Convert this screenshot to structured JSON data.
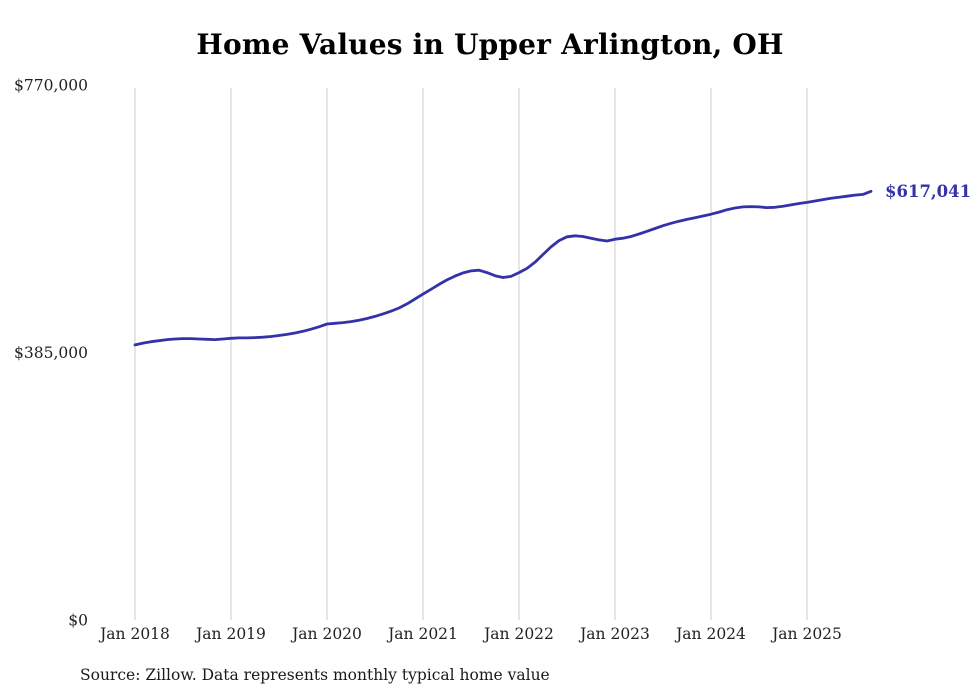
{
  "title": "Home Values in Upper Arlington, OH",
  "source_note": "Source: Zillow. Data represents monthly typical home value",
  "end_label": "$617,041",
  "colors": {
    "line": "#3432a8",
    "end_label": "#3432a8",
    "grid": "#cbcbcb",
    "axis_text": "#222222",
    "title_text": "#000000"
  },
  "chart_data": {
    "type": "line",
    "title": "Home Values in Upper Arlington, OH",
    "xlabel": "",
    "ylabel": "",
    "x_start": "2018-01",
    "x_end": "2025-09",
    "x_tick_labels": [
      "Jan 2018",
      "Jan 2019",
      "Jan 2020",
      "Jan 2021",
      "Jan 2022",
      "Jan 2023",
      "Jan 2024",
      "Jan 2025"
    ],
    "y_ticks": [
      0,
      385000,
      770000
    ],
    "y_tick_labels": [
      "$0",
      "$385,000",
      "$770,000"
    ],
    "ylim": [
      0,
      770000
    ],
    "grid": "vertical-yearly",
    "legend": "none",
    "end_value": 617041,
    "end_value_label": "$617,041",
    "series": [
      {
        "name": "Typical home value (monthly)",
        "monthly_values": [
          396000,
          398500,
          400500,
          402000,
          403500,
          404500,
          405000,
          405000,
          404500,
          404000,
          403500,
          404500,
          405500,
          406000,
          406000,
          406500,
          407000,
          408000,
          409500,
          411000,
          413000,
          415500,
          418500,
          422000,
          426000,
          427000,
          428000,
          429500,
          431500,
          434000,
          437000,
          440500,
          444500,
          449000,
          455000,
          462000,
          469000,
          476000,
          483000,
          489500,
          495000,
          499500,
          502500,
          503500,
          500000,
          495500,
          493000,
          494500,
          500000,
          506000,
          515000,
          526000,
          537000,
          546000,
          551500,
          553000,
          552000,
          549500,
          547000,
          545500,
          548000,
          549500,
          552000,
          555500,
          559500,
          563500,
          567500,
          571000,
          574000,
          576500,
          579000,
          581500,
          584000,
          587000,
          590500,
          593000,
          594500,
          595000,
          594500,
          593500,
          594000,
          595500,
          597500,
          599500,
          601000,
          603000,
          605000,
          607000,
          608500,
          610000,
          611500,
          612500,
          617041
        ]
      }
    ]
  }
}
